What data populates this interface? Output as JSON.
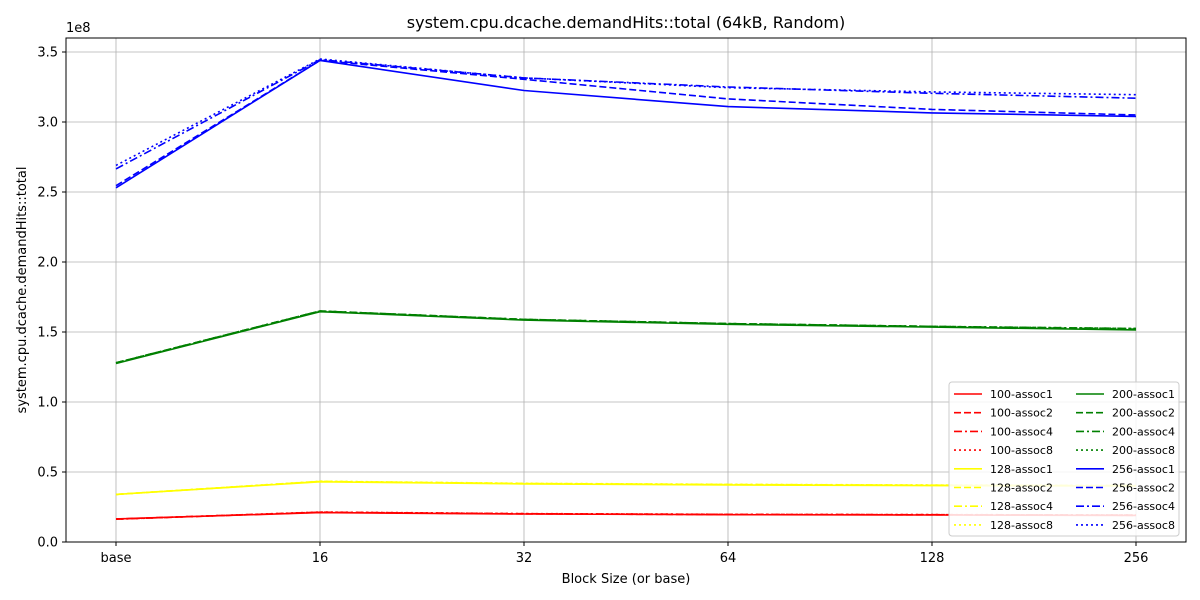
{
  "chart_data": {
    "type": "line",
    "title": "system.cpu.dcache.demandHits::total (64kB, Random)",
    "xlabel": "Block Size (or base)",
    "ylabel": "system.cpu.dcache.demandHits::total",
    "y_multiplier_label": "1e8",
    "categories": [
      "base",
      "16",
      "32",
      "64",
      "128",
      "256"
    ],
    "ylim": [
      0,
      3.6
    ],
    "yticks": [
      "0.0",
      "0.5",
      "1.0",
      "1.5",
      "2.0",
      "2.5",
      "3.0",
      "3.5"
    ],
    "grid": true,
    "legend_position": "lower-right",
    "legend_columns": 2,
    "series": [
      {
        "name": "100-assoc1",
        "color": "#ff0000",
        "style": "solid",
        "values": [
          0.165,
          0.21,
          0.2,
          0.195,
          0.193,
          0.19
        ]
      },
      {
        "name": "100-assoc2",
        "color": "#ff0000",
        "style": "dashed",
        "values": [
          0.164,
          0.212,
          0.201,
          0.196,
          0.194,
          0.191
        ]
      },
      {
        "name": "100-assoc4",
        "color": "#ff0000",
        "style": "dashdot",
        "values": [
          0.163,
          0.213,
          0.202,
          0.197,
          0.195,
          0.192
        ]
      },
      {
        "name": "100-assoc8",
        "color": "#ff0000",
        "style": "dotted",
        "values": [
          0.163,
          0.214,
          0.203,
          0.198,
          0.196,
          0.193
        ]
      },
      {
        "name": "128-assoc1",
        "color": "#ffff00",
        "style": "solid",
        "values": [
          0.34,
          0.43,
          0.415,
          0.408,
          0.403,
          0.4
        ]
      },
      {
        "name": "128-assoc2",
        "color": "#ffff00",
        "style": "dashed",
        "values": [
          0.34,
          0.432,
          0.417,
          0.41,
          0.405,
          0.402
        ]
      },
      {
        "name": "128-assoc4",
        "color": "#ffff00",
        "style": "dashdot",
        "values": [
          0.34,
          0.433,
          0.418,
          0.411,
          0.406,
          0.403
        ]
      },
      {
        "name": "128-assoc8",
        "color": "#ffff00",
        "style": "dotted",
        "values": [
          0.34,
          0.434,
          0.419,
          0.412,
          0.407,
          0.404
        ]
      },
      {
        "name": "200-assoc1",
        "color": "#008000",
        "style": "solid",
        "values": [
          1.275,
          1.645,
          1.585,
          1.555,
          1.535,
          1.515
        ]
      },
      {
        "name": "200-assoc2",
        "color": "#008000",
        "style": "dashed",
        "values": [
          1.28,
          1.65,
          1.59,
          1.56,
          1.54,
          1.52
        ]
      },
      {
        "name": "200-assoc4",
        "color": "#008000",
        "style": "dashdot",
        "values": [
          1.28,
          1.65,
          1.59,
          1.56,
          1.54,
          1.525
        ]
      },
      {
        "name": "200-assoc8",
        "color": "#008000",
        "style": "dotted",
        "values": [
          1.28,
          1.65,
          1.59,
          1.56,
          1.54,
          1.525
        ]
      },
      {
        "name": "256-assoc1",
        "color": "#0000ff",
        "style": "solid",
        "values": [
          2.53,
          3.44,
          3.225,
          3.11,
          3.065,
          3.04
        ]
      },
      {
        "name": "256-assoc2",
        "color": "#0000ff",
        "style": "dashed",
        "values": [
          2.545,
          3.44,
          3.305,
          3.165,
          3.09,
          3.05
        ]
      },
      {
        "name": "256-assoc4",
        "color": "#0000ff",
        "style": "dashdot",
        "values": [
          2.665,
          3.445,
          3.315,
          3.25,
          3.205,
          3.17
        ]
      },
      {
        "name": "256-assoc8",
        "color": "#0000ff",
        "style": "dotted",
        "values": [
          2.69,
          3.45,
          3.315,
          3.245,
          3.215,
          3.195
        ]
      }
    ]
  }
}
